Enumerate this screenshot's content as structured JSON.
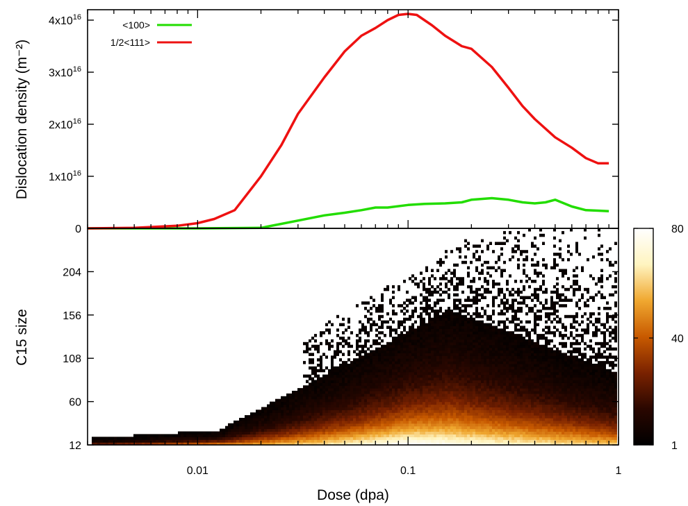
{
  "chart_data": [
    {
      "type": "line",
      "panel": "top",
      "ylabel": "Dislocation density (m⁻²)",
      "xscale": "log",
      "xlim": [
        0.003,
        1
      ],
      "ylim": [
        0,
        4.2e+16
      ],
      "yticks": [
        0,
        1e+16,
        2e+16,
        3e+16,
        4e+16
      ],
      "ytick_base": "x10",
      "ytick_exponent": "16",
      "ytick_mantissas": [
        "0",
        "1",
        "2",
        "3",
        "4"
      ],
      "legend_position": "top-left",
      "series": [
        {
          "name": "<100>",
          "color": "#22dd00",
          "x": [
            0.003,
            0.01,
            0.02,
            0.03,
            0.04,
            0.05,
            0.06,
            0.07,
            0.08,
            0.1,
            0.12,
            0.15,
            0.18,
            0.2,
            0.25,
            0.3,
            0.35,
            0.4,
            0.45,
            0.5,
            0.6,
            0.7,
            0.8,
            0.9
          ],
          "y": [
            0,
            0,
            100000000000000.0,
            1500000000000000.0,
            2500000000000000.0,
            3000000000000000.0,
            3500000000000000.0,
            4000000000000000.0,
            4000000000000000.0,
            4500000000000000.0,
            4700000000000000.0,
            4800000000000000.0,
            5000000000000000.0,
            5500000000000000.0,
            5800000000000000.0,
            5500000000000000.0,
            5000000000000000.0,
            4800000000000000.0,
            5000000000000000.0,
            5500000000000000.0,
            4200000000000000.0,
            3500000000000000.0,
            3400000000000000.0,
            3300000000000000.0
          ]
        },
        {
          "name": "1/2<111>",
          "color": "#ee1111",
          "x": [
            0.003,
            0.005,
            0.008,
            0.01,
            0.012,
            0.015,
            0.02,
            0.025,
            0.03,
            0.04,
            0.05,
            0.06,
            0.07,
            0.08,
            0.09,
            0.1,
            0.11,
            0.13,
            0.15,
            0.18,
            0.2,
            0.25,
            0.3,
            0.35,
            0.4,
            0.5,
            0.6,
            0.7,
            0.8,
            0.9
          ],
          "y": [
            0,
            100000000000000.0,
            500000000000000.0,
            1000000000000000.0,
            1800000000000000.0,
            3500000000000000.0,
            1e+16,
            1.6e+16,
            2.2e+16,
            2.9e+16,
            3.4e+16,
            3.7e+16,
            3.85e+16,
            4e+16,
            4.1e+16,
            4.12e+16,
            4.1e+16,
            3.9e+16,
            3.7e+16,
            3.5e+16,
            3.45e+16,
            3.1e+16,
            2.7e+16,
            2.35e+16,
            2.1e+16,
            1.75e+16,
            1.55e+16,
            1.35e+16,
            1.25e+16,
            1.25e+16
          ]
        }
      ]
    },
    {
      "type": "heatmap",
      "panel": "bottom",
      "xlabel": "Dose (dpa)",
      "ylabel": "C15 size",
      "xscale": "log",
      "xlim": [
        0.003,
        1
      ],
      "xticks": [
        0.01,
        0.1,
        1
      ],
      "xtick_labels": [
        "0.01",
        "0.1",
        "1"
      ],
      "ylim": [
        12,
        252
      ],
      "yticks": [
        12,
        60,
        108,
        156,
        204
      ],
      "ytick_labels": [
        "12",
        "60",
        "108",
        "156",
        "204"
      ],
      "colorbar": {
        "min": 1,
        "max": 80,
        "ticks": [
          1,
          40,
          80
        ],
        "tick_labels": [
          "1",
          "40",
          "80"
        ],
        "colors": [
          "#000000",
          "#2a0700",
          "#7a2200",
          "#c85a00",
          "#f0a830",
          "#fff4c0",
          "#ffffff"
        ]
      }
    }
  ]
}
